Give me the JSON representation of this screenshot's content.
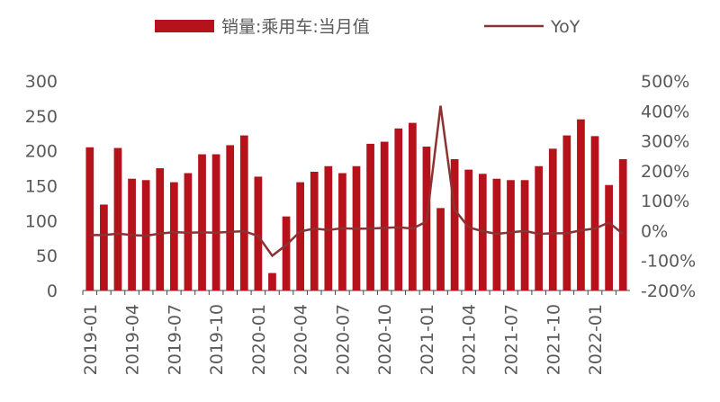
{
  "chart_data": {
    "type": "bar_line",
    "categories": [
      "2019-01",
      null,
      null,
      "2019-04",
      null,
      null,
      "2019-07",
      null,
      null,
      "2019-10",
      null,
      null,
      "2020-01",
      null,
      null,
      "2020-04",
      null,
      null,
      "2020-07",
      null,
      null,
      "2020-10",
      null,
      null,
      "2021-01",
      null,
      null,
      "2021-04",
      null,
      null,
      "2021-07",
      null,
      null,
      "2021-10",
      null,
      null,
      "2022-01",
      null,
      null
    ],
    "series": [
      {
        "name": "销量:乘用车:当月值",
        "type": "bar",
        "color": "#b5121b",
        "values": [
          205,
          123,
          204,
          160,
          158,
          175,
          155,
          168,
          195,
          195,
          208,
          222,
          163,
          25,
          106,
          155,
          170,
          178,
          168,
          178,
          210,
          213,
          232,
          240,
          206,
          118,
          188,
          173,
          167,
          160,
          158,
          158,
          178,
          203,
          222,
          245,
          221,
          151,
          188
        ]
      },
      {
        "name": "YoY",
        "type": "line",
        "axis": "y2",
        "color": "#8b3232",
        "values": [
          -15,
          -15,
          -10,
          -15,
          -17,
          -10,
          -5,
          -7,
          -6,
          -7,
          -4,
          -2,
          -18,
          -84,
          -48,
          -3,
          7,
          2,
          8,
          6,
          7,
          9,
          11,
          7,
          30,
          417,
          70,
          11,
          -2,
          -11,
          -6,
          -1,
          -11,
          -9,
          -9,
          1,
          7,
          27,
          -11
        ]
      }
    ],
    "ylim": [
      0,
      300
    ],
    "yticks": [
      0,
      50,
      100,
      150,
      200,
      250,
      300
    ],
    "y2lim": [
      -200,
      500
    ],
    "y2ticks": [
      {
        "value": -200,
        "label": "-200%"
      },
      {
        "value": -100,
        "label": "-100%"
      },
      {
        "value": 0,
        "label": "0%"
      },
      {
        "value": 100,
        "label": "100%"
      },
      {
        "value": 200,
        "label": "200%"
      },
      {
        "value": 300,
        "label": "300%"
      },
      {
        "value": 400,
        "label": "400%"
      },
      {
        "value": 500,
        "label": "500%"
      }
    ],
    "legend": "top"
  }
}
